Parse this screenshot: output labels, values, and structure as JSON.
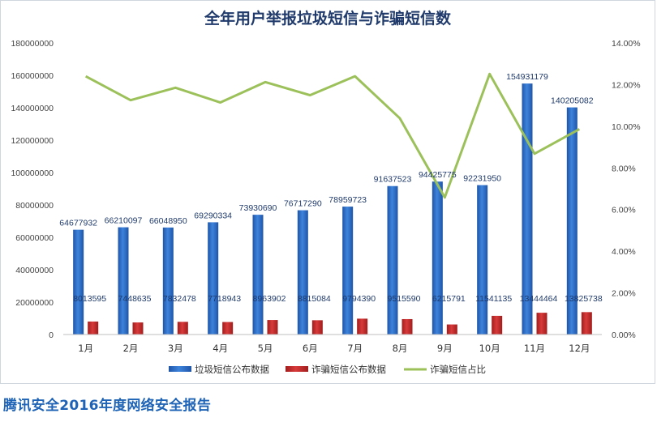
{
  "chart_data": {
    "type": "bar",
    "title": "全年用户举报垃圾短信与诈骗短信数",
    "categories": [
      "1月",
      "2月",
      "3月",
      "4月",
      "5月",
      "6月",
      "7月",
      "8月",
      "9月",
      "10月",
      "11月",
      "12月"
    ],
    "series": [
      {
        "name": "垃圾短信公布数据",
        "type": "bar",
        "axis": "left",
        "color": "#2e6fc9",
        "values": [
          64677932,
          66210097,
          66048950,
          69290334,
          73930690,
          76717290,
          78959723,
          91637523,
          94425775,
          92231950,
          154931179,
          140205082
        ],
        "labels": [
          "64677932",
          "66210097",
          "66048950",
          "69290334",
          "73930690",
          "76717290",
          "78959723",
          "91637523",
          "94425775",
          "92231950",
          "154931179",
          "140205082"
        ]
      },
      {
        "name": "诈骗短信公布数据",
        "type": "bar",
        "axis": "left",
        "color": "#cc2b2b",
        "values": [
          8013595,
          7448635,
          7832478,
          7718943,
          8963902,
          8815084,
          9794390,
          9515590,
          6215791,
          11541135,
          13444464,
          13825738
        ],
        "labels": [
          "8013595",
          "7448635",
          "7832478",
          "7718943",
          "8963902",
          "8815084",
          "9794390",
          "9515590",
          "6215791",
          "11541135",
          "13444464",
          "13825738"
        ]
      },
      {
        "name": "诈骗短信占比",
        "type": "line",
        "axis": "right",
        "color": "#9cc15a",
        "values": [
          0.124,
          0.1125,
          0.1185,
          0.1114,
          0.1212,
          0.1149,
          0.124,
          0.1038,
          0.0658,
          0.1251,
          0.0868,
          0.0986
        ]
      }
    ],
    "ylim": [
      0,
      180000000
    ],
    "y_ticks": [
      "0",
      "20000000",
      "40000000",
      "60000000",
      "80000000",
      "100000000",
      "120000000",
      "140000000",
      "160000000",
      "180000000"
    ],
    "y2lim": [
      0,
      0.14
    ],
    "y2_ticks": [
      "0.00%",
      "2.00%",
      "4.00%",
      "6.00%",
      "8.00%",
      "10.00%",
      "12.00%",
      "14.00%"
    ],
    "grid": false,
    "legend_position": "bottom"
  },
  "footer": "腾讯安全2016年度网络安全报告"
}
